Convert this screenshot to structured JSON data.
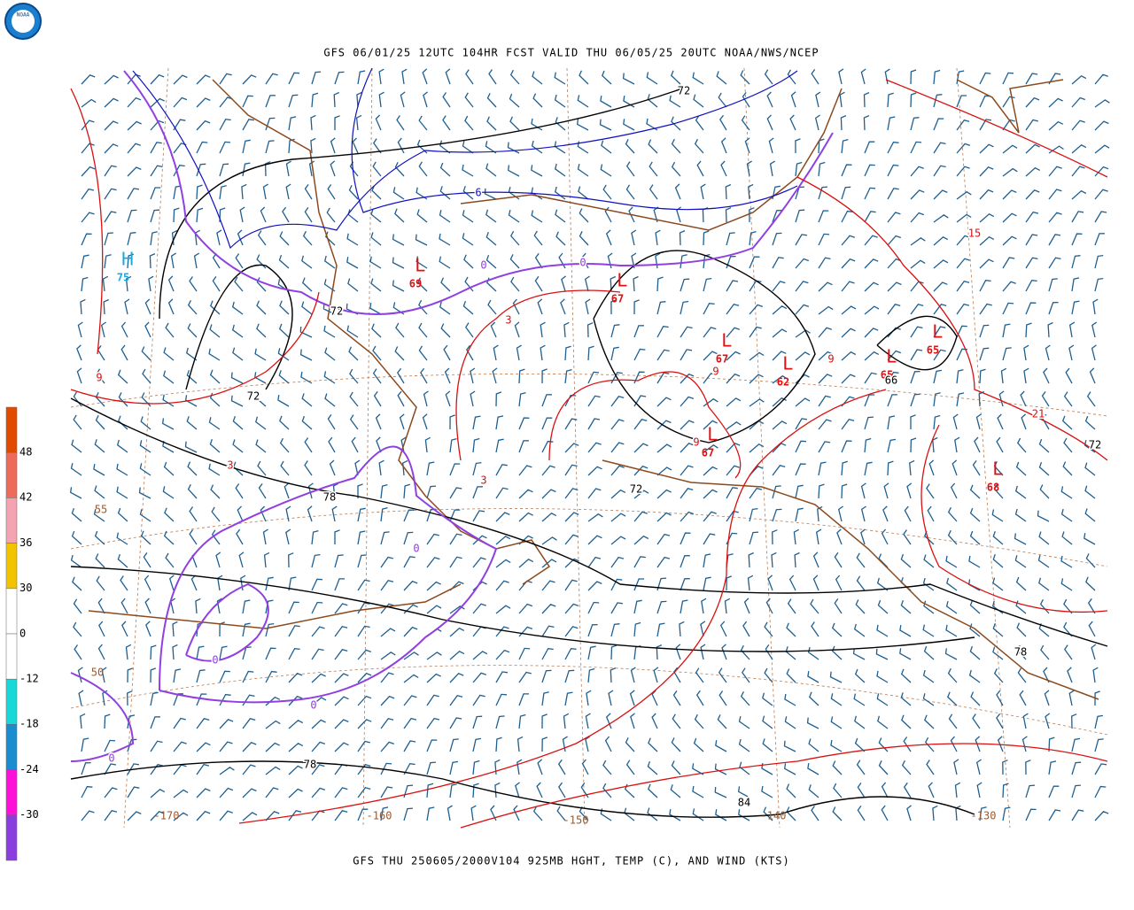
{
  "logo": "NOAA",
  "header": "GFS 06/01/25 12UTC 104HR FCST VALID THU 06/05/25 20UTC NOAA/NWS/NCEP",
  "footer": "GFS THU 250605/2000V104 925MB HGHT, TEMP (C), AND WIND (KTS)",
  "colorbar": {
    "colors": [
      "#e24a00",
      "#ee6a5a",
      "#f4a4b0",
      "#f2c400",
      "#ffffff",
      "#ffffff",
      "#18d8d8",
      "#1a8cd0",
      "#ff10d8",
      "#8a3ee0"
    ],
    "labels": [
      "48",
      "42",
      "36",
      "30",
      "0",
      "-12",
      "-18",
      "-24",
      "-30"
    ]
  },
  "longitudes": [
    "-170",
    "-160",
    "-150",
    "-140",
    "-130"
  ],
  "latitudes": [
    "55",
    "50"
  ],
  "centers": [
    {
      "symbol": "H",
      "value": "75"
    },
    {
      "symbol": "L",
      "value": "69"
    },
    {
      "symbol": "L",
      "value": "67"
    },
    {
      "symbol": "L",
      "value": "67"
    },
    {
      "symbol": "L",
      "value": "62"
    },
    {
      "symbol": "L",
      "value": "65"
    },
    {
      "symbol": "L",
      "value": "65"
    },
    {
      "symbol": "L",
      "value": "67"
    },
    {
      "symbol": "L",
      "value": "68"
    }
  ],
  "height_labels": [
    "72",
    "72",
    "72",
    "72",
    "72",
    "78",
    "78",
    "78",
    "84",
    "66"
  ],
  "temp_labels": [
    "6",
    "0",
    "0",
    "0",
    "0",
    "0",
    "0",
    "3",
    "3",
    "3",
    "9",
    "9",
    "9",
    "9",
    "15",
    "21"
  ]
}
